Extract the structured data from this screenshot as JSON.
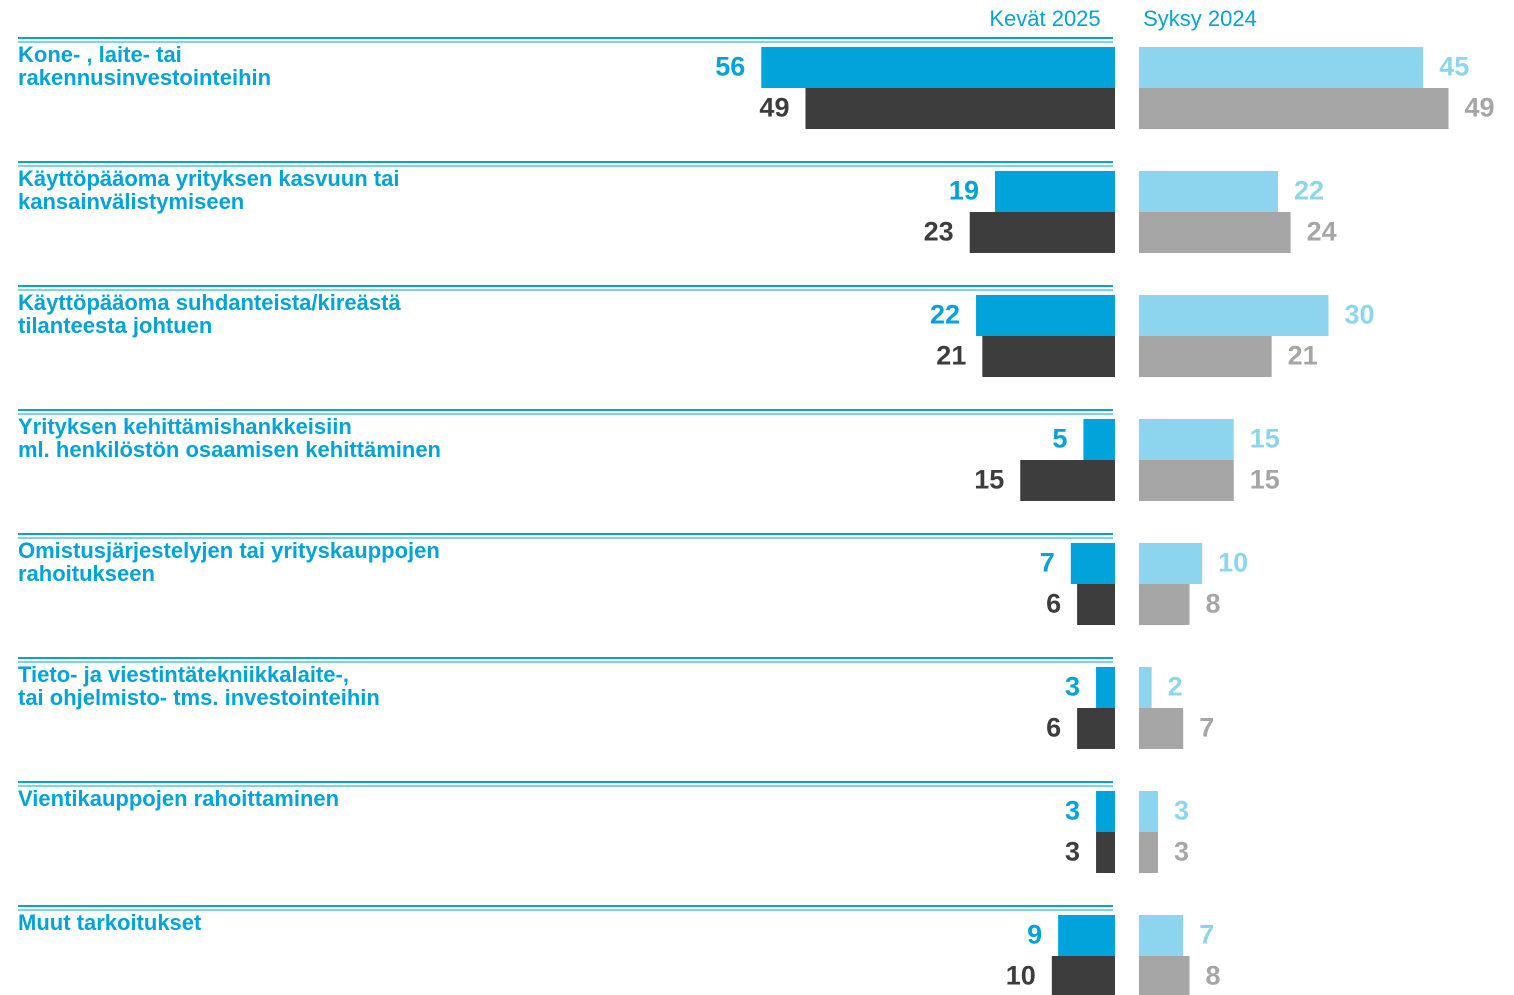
{
  "chart_data": {
    "type": "butterfly-bar",
    "categories": [
      [
        "Kone- , laite- tai",
        "rakennusinvestointeihin"
      ],
      [
        "Käyttöpääoma yrityksen kasvuun tai",
        "kansainvälistymiseen"
      ],
      [
        "Käyttöpääoma suhdanteista/kireästä",
        "tilanteesta johtuen"
      ],
      [
        "Yrityksen kehittämishankkeisiin",
        "ml. henkilöstön osaamisen kehittäminen"
      ],
      [
        "Omistusjärjestelyjen tai yrityskauppojen",
        "rahoitukseen"
      ],
      [
        "Tieto- ja viestintätekniikkalaite-,",
        "tai ohjelmisto- tms. investointeihin"
      ],
      [
        "Vientikauppojen rahoittaminen"
      ],
      [
        "Muut tarkoitukset"
      ]
    ],
    "panels": [
      {
        "name": "Kevät 2025",
        "side": "left",
        "series": [
          {
            "color": "#00a3da",
            "values": [
              56,
              19,
              22,
              5,
              7,
              3,
              3,
              9
            ]
          },
          {
            "color": "#3d3d3d",
            "values": [
              49,
              23,
              21,
              15,
              6,
              6,
              3,
              10
            ]
          }
        ]
      },
      {
        "name": "Syksy 2024",
        "side": "right",
        "series": [
          {
            "color": "#8dd5ee",
            "values": [
              45,
              22,
              30,
              15,
              10,
              2,
              3,
              7
            ]
          },
          {
            "color": "#a6a6a6",
            "values": [
              49,
              24,
              21,
              15,
              8,
              7,
              3,
              8
            ]
          }
        ]
      }
    ],
    "xlim": [
      0,
      60
    ]
  }
}
